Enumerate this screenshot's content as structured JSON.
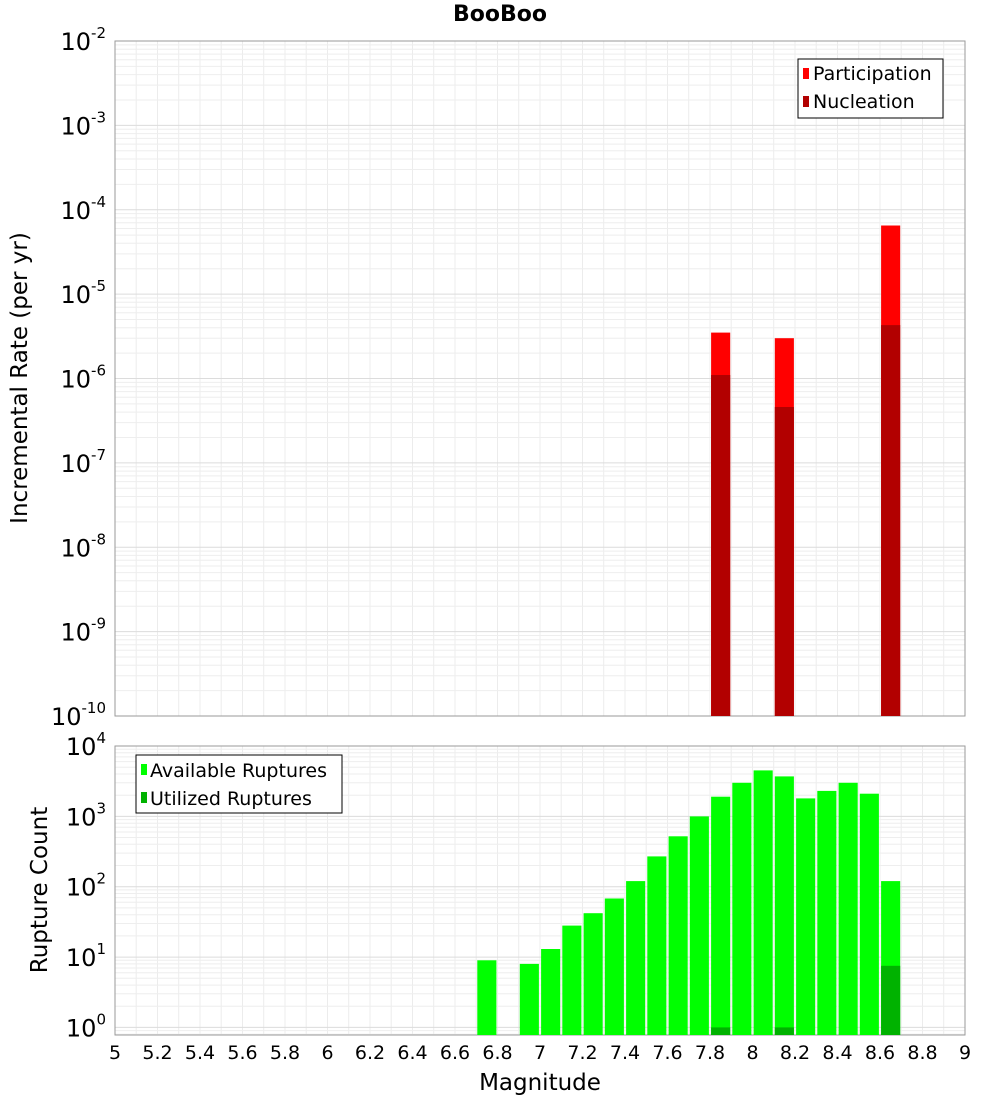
{
  "chart_data": [
    {
      "type": "bar",
      "title": "BooBoo",
      "xlabel": "Magnitude",
      "ylabel": "Incremental Rate (per yr)",
      "yscale": "log",
      "ylim": [
        1e-10,
        0.01
      ],
      "xlim": [
        5,
        9
      ],
      "y_ticks": [
        {
          "base": "10",
          "exp": "-10"
        },
        {
          "base": "10",
          "exp": "-9"
        },
        {
          "base": "10",
          "exp": "-8"
        },
        {
          "base": "10",
          "exp": "-7"
        },
        {
          "base": "10",
          "exp": "-6"
        },
        {
          "base": "10",
          "exp": "-5"
        },
        {
          "base": "10",
          "exp": "-4"
        },
        {
          "base": "10",
          "exp": "-3"
        },
        {
          "base": "10",
          "exp": "-2"
        }
      ],
      "legend_position": "top-right",
      "bar_width": 0.09,
      "series": [
        {
          "name": "Participation",
          "color": "#ff0000",
          "points": [
            {
              "x": 7.85,
              "y": 3.5e-06
            },
            {
              "x": 8.15,
              "y": 3e-06
            },
            {
              "x": 8.65,
              "y": 6.5e-05
            }
          ]
        },
        {
          "name": "Nucleation",
          "color": "#b20000",
          "points": [
            {
              "x": 7.85,
              "y": 1.1e-06
            },
            {
              "x": 8.15,
              "y": 4.6e-07
            },
            {
              "x": 8.65,
              "y": 4.3e-06
            }
          ]
        }
      ],
      "grid": true
    },
    {
      "type": "bar",
      "xlabel": "Magnitude",
      "ylabel": "Rupture Count",
      "yscale": "log",
      "ylim": [
        0.78,
        10000
      ],
      "xlim": [
        5,
        9
      ],
      "x_tick_labels": [
        "5",
        "5.2",
        "5.4",
        "5.6",
        "5.8",
        "6",
        "6.2",
        "6.4",
        "6.6",
        "6.8",
        "7",
        "7.2",
        "7.4",
        "7.6",
        "7.8",
        "8",
        "8.2",
        "8.4",
        "8.6",
        "8.8",
        "9"
      ],
      "y_ticks": [
        {
          "base": "10",
          "exp": "0"
        },
        {
          "base": "10",
          "exp": "1"
        },
        {
          "base": "10",
          "exp": "2"
        },
        {
          "base": "10",
          "exp": "3"
        },
        {
          "base": "10",
          "exp": "4"
        }
      ],
      "legend_position": "top-left",
      "bar_width": 0.09,
      "series": [
        {
          "name": "Available Ruptures",
          "color": "#00ff00",
          "points": [
            {
              "x": 6.75,
              "y": 9
            },
            {
              "x": 6.95,
              "y": 8
            },
            {
              "x": 7.05,
              "y": 13
            },
            {
              "x": 7.15,
              "y": 28
            },
            {
              "x": 7.25,
              "y": 42
            },
            {
              "x": 7.35,
              "y": 68
            },
            {
              "x": 7.45,
              "y": 120
            },
            {
              "x": 7.55,
              "y": 270
            },
            {
              "x": 7.65,
              "y": 520
            },
            {
              "x": 7.75,
              "y": 1000
            },
            {
              "x": 7.85,
              "y": 1900
            },
            {
              "x": 7.95,
              "y": 3000
            },
            {
              "x": 8.05,
              "y": 4500
            },
            {
              "x": 8.15,
              "y": 3700
            },
            {
              "x": 8.25,
              "y": 1800
            },
            {
              "x": 8.35,
              "y": 2300
            },
            {
              "x": 8.45,
              "y": 3000
            },
            {
              "x": 8.55,
              "y": 2100
            },
            {
              "x": 8.65,
              "y": 120
            }
          ]
        },
        {
          "name": "Utilized Ruptures",
          "color": "#00b200",
          "points": [
            {
              "x": 7.85,
              "y": 1
            },
            {
              "x": 8.15,
              "y": 1
            },
            {
              "x": 8.65,
              "y": 7.5
            }
          ]
        }
      ],
      "grid": true
    }
  ]
}
